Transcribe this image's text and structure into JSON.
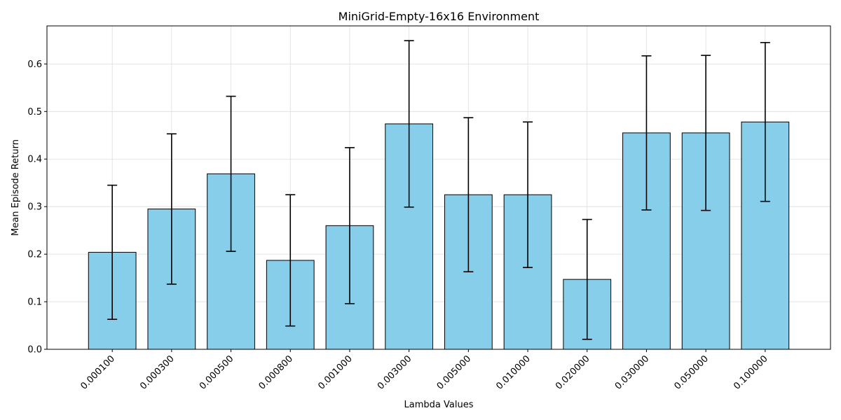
{
  "chart_data": {
    "type": "bar",
    "title": "MiniGrid-Empty-16x16 Environment",
    "xlabel": "Lambda Values",
    "ylabel": "Mean Episode Return",
    "categories": [
      "0.000100",
      "0.000300",
      "0.000500",
      "0.000800",
      "0.001000",
      "0.003000",
      "0.005000",
      "0.010000",
      "0.020000",
      "0.030000",
      "0.050000",
      "0.100000"
    ],
    "values": [
      0.204,
      0.295,
      0.369,
      0.187,
      0.26,
      0.474,
      0.325,
      0.325,
      0.147,
      0.455,
      0.455,
      0.478
    ],
    "error": [
      0.141,
      0.158,
      0.163,
      0.138,
      0.164,
      0.175,
      0.162,
      0.153,
      0.126,
      0.162,
      0.163,
      0.167
    ],
    "yticks": [
      "0.0",
      "0.1",
      "0.2",
      "0.3",
      "0.4",
      "0.5",
      "0.6"
    ],
    "ylim": [
      0,
      0.68
    ],
    "grid": true,
    "bar_color": "#87ceeb",
    "edge_color": "#000000",
    "error_color": "#000000"
  }
}
